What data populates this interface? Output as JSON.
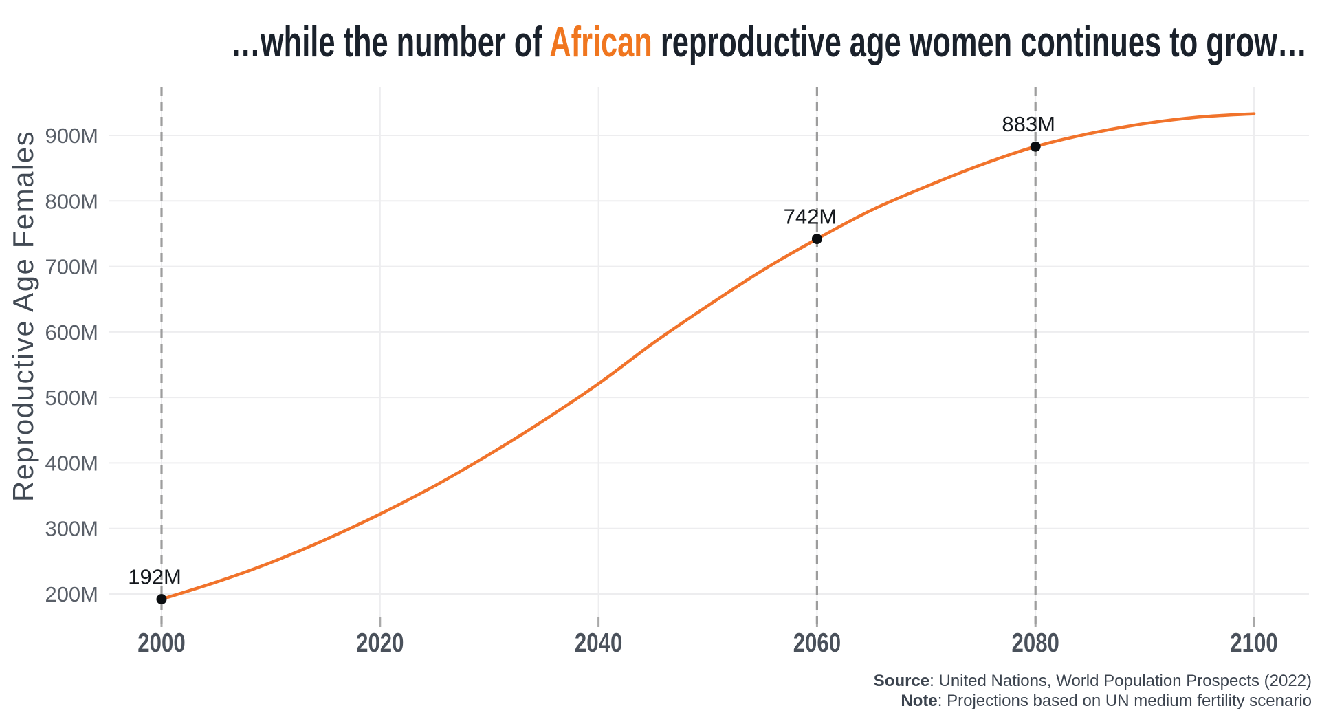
{
  "title": {
    "prefix": "…while the number of ",
    "highlight": "African",
    "suffix": " reproductive age women continues to grow…"
  },
  "caption": {
    "source_label": "Source",
    "source_text": ": United Nations, World Population Prospects (2022)",
    "note_label": "Note",
    "note_text": ": Projections based on UN medium fertility scenario"
  },
  "colors": {
    "accent_orange": "#f0761f",
    "line_orange": "#f1732b",
    "title_text": "#1a212b",
    "grid_line": "#ededef",
    "dashed_reference": "#9d9d9d",
    "axis_text": "#595f68",
    "point_black": "#0b0e11"
  },
  "chart_data": {
    "type": "line",
    "title": "…while the number of African reproductive age women continues to grow…",
    "title_highlight_word": "African",
    "xlabel": "",
    "ylabel": "Reproductive Age Females",
    "x_ticks": [
      2000,
      2020,
      2040,
      2060,
      2080,
      2100
    ],
    "x_tick_labels": [
      "2000",
      "2020",
      "2040",
      "2060",
      "2080",
      "2100"
    ],
    "y_ticks": [
      200,
      300,
      400,
      500,
      600,
      700,
      800,
      900
    ],
    "y_tick_labels": [
      "200M",
      "300M",
      "400M",
      "500M",
      "600M",
      "700M",
      "800M",
      "900M"
    ],
    "xlim": [
      1995,
      2105
    ],
    "ylim": [
      150,
      1000
    ],
    "grid": true,
    "legend": "none",
    "reference_years_dashed": [
      2000,
      2060,
      2080
    ],
    "series": [
      {
        "name": "African reproductive age females (millions)",
        "color": "#f1732b",
        "x": [
          2000,
          2005,
          2010,
          2015,
          2020,
          2025,
          2030,
          2035,
          2040,
          2045,
          2050,
          2055,
          2060,
          2065,
          2070,
          2075,
          2080,
          2085,
          2090,
          2095,
          2100
        ],
        "y": [
          192,
          218,
          248,
          283,
          322,
          365,
          413,
          465,
          521,
          583,
          640,
          694,
          742,
          786,
          822,
          855,
          883,
          903,
          918,
          928,
          933
        ]
      }
    ],
    "labeled_points": [
      {
        "x": 2000,
        "y": 192,
        "label": "192M"
      },
      {
        "x": 2060,
        "y": 742,
        "label": "742M"
      },
      {
        "x": 2080,
        "y": 883,
        "label": "883M"
      }
    ]
  }
}
